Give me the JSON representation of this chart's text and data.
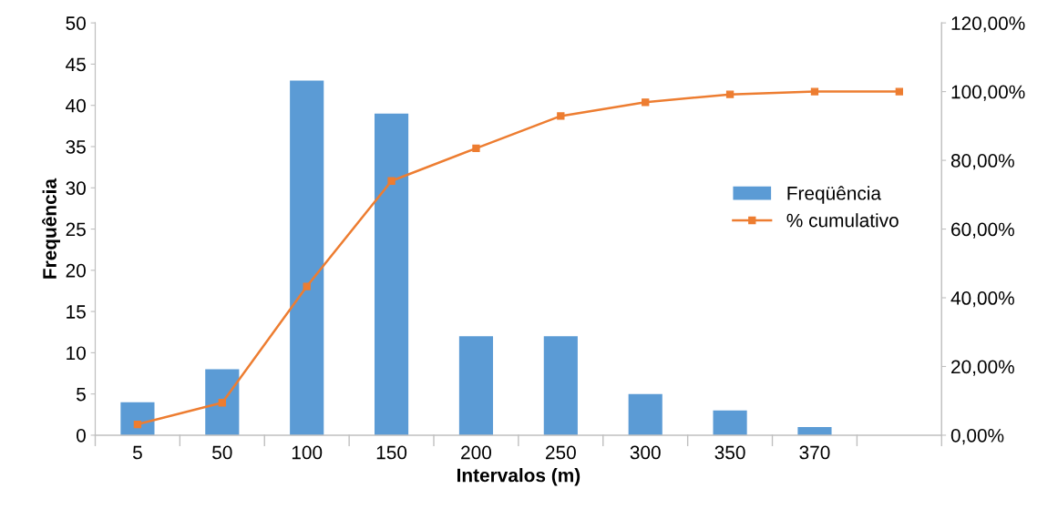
{
  "chart_data": {
    "type": "bar",
    "xlabel": "Intervalos (m)",
    "ylabel": "Frequência",
    "categories": [
      "5",
      "50",
      "100",
      "150",
      "200",
      "250",
      "300",
      "350",
      "370",
      null
    ],
    "series": [
      {
        "name": "Freqüência",
        "color": "#5b9bd5",
        "values": [
          4,
          8,
          43,
          39,
          12,
          12,
          5,
          3,
          1,
          null
        ]
      },
      {
        "name": "% cumulativo",
        "type": "line",
        "axis": "y2",
        "color": "#ed7d31",
        "marker": "square",
        "values": [
          3.15,
          9.45,
          43.3,
          74.0,
          83.5,
          92.9,
          96.9,
          99.2,
          100,
          100
        ]
      }
    ],
    "ylim": [
      0,
      50
    ],
    "yticks": [
      0,
      5,
      10,
      15,
      20,
      25,
      30,
      35,
      40,
      45,
      50
    ],
    "y2lim": [
      0,
      120
    ],
    "y2ticks": [
      {
        "value": 0,
        "label": "0,00%"
      },
      {
        "value": 20,
        "label": "20,00%"
      },
      {
        "value": 40,
        "label": "40,00%"
      },
      {
        "value": 60,
        "label": "60,00%"
      },
      {
        "value": 80,
        "label": "80,00%"
      },
      {
        "value": 100,
        "label": "100,00%"
      },
      {
        "value": 120,
        "label": "120,00%"
      }
    ],
    "grid": false,
    "legend": "right"
  }
}
